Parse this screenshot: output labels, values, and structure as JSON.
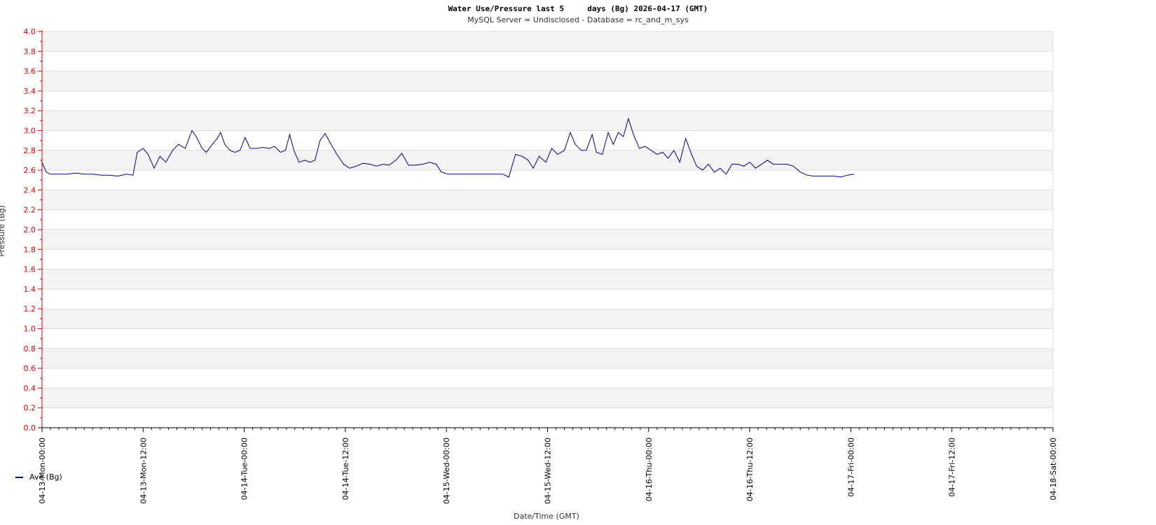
{
  "chart_data": {
    "type": "line",
    "title": "Water Use/Pressure last 5     days (Bg) 2026-04-17 (GMT)",
    "subtitle": "MySQL Server = Undisclosed - Database = rc_and_m_sys",
    "xlabel": "Date/Time (GMT)",
    "ylabel": "Pressure (Bg)",
    "ylim": [
      0,
      4.0
    ],
    "xlim": [
      0,
      120
    ],
    "y_ticks": [
      "0.0",
      "0.2",
      "0.4",
      "0.6",
      "0.8",
      "1.0",
      "1.2",
      "1.4",
      "1.6",
      "1.8",
      "2.0",
      "2.2",
      "2.4",
      "2.6",
      "2.8",
      "3.0",
      "3.2",
      "3.4",
      "3.6",
      "3.8",
      "4.0"
    ],
    "x_tick_labels": [
      "04-13-Mon-00:00",
      "04-13-Mon-12:00",
      "04-14-Tue-00:00",
      "04-14-Tue-12:00",
      "04-15-Wed-00:00",
      "04-15-Wed-12:00",
      "04-16-Thu-00:00",
      "04-16-Thu-12:00",
      "04-17-Fri-00:00",
      "04-17-Fri-12:00",
      "04-18-Sat-00:00"
    ],
    "x_unit": "hours",
    "grid": "horizontal bands",
    "legend_position": "bottom-left",
    "series": [
      {
        "name": "Ave (Bg)",
        "color": "#00008b",
        "points": [
          [
            0,
            2.68
          ],
          [
            0.5,
            2.58
          ],
          [
            1,
            2.56
          ],
          [
            2,
            2.56
          ],
          [
            3,
            2.56
          ],
          [
            4,
            2.57
          ],
          [
            5,
            2.56
          ],
          [
            6,
            2.56
          ],
          [
            7,
            2.55
          ],
          [
            8,
            2.55
          ],
          [
            9,
            2.54
          ],
          [
            10,
            2.56
          ],
          [
            10.8,
            2.55
          ],
          [
            11.3,
            2.78
          ],
          [
            12,
            2.82
          ],
          [
            12.6,
            2.76
          ],
          [
            13.3,
            2.62
          ],
          [
            14,
            2.74
          ],
          [
            14.7,
            2.68
          ],
          [
            15.5,
            2.8
          ],
          [
            16.2,
            2.86
          ],
          [
            17,
            2.82
          ],
          [
            17.8,
            3.0
          ],
          [
            18.3,
            2.94
          ],
          [
            19,
            2.82
          ],
          [
            19.5,
            2.78
          ],
          [
            20.2,
            2.86
          ],
          [
            20.8,
            2.92
          ],
          [
            21.2,
            2.98
          ],
          [
            21.7,
            2.86
          ],
          [
            22.3,
            2.8
          ],
          [
            22.9,
            2.78
          ],
          [
            23.5,
            2.8
          ],
          [
            24.1,
            2.93
          ],
          [
            24.7,
            2.82
          ],
          [
            25.5,
            2.82
          ],
          [
            26.2,
            2.83
          ],
          [
            27,
            2.82
          ],
          [
            27.6,
            2.84
          ],
          [
            28.3,
            2.78
          ],
          [
            28.9,
            2.8
          ],
          [
            29.4,
            2.96
          ],
          [
            29.9,
            2.8
          ],
          [
            30.5,
            2.68
          ],
          [
            31.2,
            2.7
          ],
          [
            31.8,
            2.68
          ],
          [
            32.4,
            2.7
          ],
          [
            33,
            2.9
          ],
          [
            33.6,
            2.97
          ],
          [
            34.3,
            2.86
          ],
          [
            35,
            2.76
          ],
          [
            35.8,
            2.66
          ],
          [
            36.5,
            2.62
          ],
          [
            37.3,
            2.64
          ],
          [
            38.1,
            2.67
          ],
          [
            38.9,
            2.66
          ],
          [
            39.7,
            2.64
          ],
          [
            40.5,
            2.66
          ],
          [
            41.2,
            2.65
          ],
          [
            42,
            2.7
          ],
          [
            42.7,
            2.77
          ],
          [
            43.5,
            2.65
          ],
          [
            44.3,
            2.65
          ],
          [
            45.2,
            2.66
          ],
          [
            46,
            2.68
          ],
          [
            46.8,
            2.66
          ],
          [
            47.4,
            2.58
          ],
          [
            48.2,
            2.56
          ],
          [
            49,
            2.56
          ],
          [
            49.8,
            2.56
          ],
          [
            50.6,
            2.56
          ],
          [
            51.4,
            2.56
          ],
          [
            52.3,
            2.56
          ],
          [
            53.1,
            2.56
          ],
          [
            53.9,
            2.56
          ],
          [
            54.7,
            2.56
          ],
          [
            55.4,
            2.53
          ],
          [
            56.2,
            2.76
          ],
          [
            57,
            2.74
          ],
          [
            57.7,
            2.7
          ],
          [
            58.3,
            2.62
          ],
          [
            59,
            2.74
          ],
          [
            59.8,
            2.68
          ],
          [
            60.5,
            2.82
          ],
          [
            61.2,
            2.76
          ],
          [
            62,
            2.8
          ],
          [
            62.7,
            2.98
          ],
          [
            63.3,
            2.86
          ],
          [
            64,
            2.8
          ],
          [
            64.6,
            2.8
          ],
          [
            65.3,
            2.96
          ],
          [
            65.8,
            2.78
          ],
          [
            66.5,
            2.76
          ],
          [
            67.2,
            2.98
          ],
          [
            67.8,
            2.86
          ],
          [
            68.4,
            2.98
          ],
          [
            69,
            2.94
          ],
          [
            69.6,
            3.12
          ],
          [
            70.2,
            2.96
          ],
          [
            70.9,
            2.82
          ],
          [
            71.6,
            2.84
          ],
          [
            72.3,
            2.8
          ],
          [
            73,
            2.76
          ],
          [
            73.7,
            2.78
          ],
          [
            74.3,
            2.72
          ],
          [
            75,
            2.8
          ],
          [
            75.7,
            2.68
          ],
          [
            76.4,
            2.92
          ],
          [
            77,
            2.78
          ],
          [
            77.7,
            2.64
          ],
          [
            78.4,
            2.6
          ],
          [
            79.1,
            2.66
          ],
          [
            79.8,
            2.58
          ],
          [
            80.5,
            2.62
          ],
          [
            81.2,
            2.56
          ],
          [
            81.9,
            2.66
          ],
          [
            82.6,
            2.66
          ],
          [
            83.3,
            2.64
          ],
          [
            84,
            2.68
          ],
          [
            84.7,
            2.62
          ],
          [
            85.4,
            2.66
          ],
          [
            86.1,
            2.7
          ],
          [
            86.8,
            2.66
          ],
          [
            87.6,
            2.66
          ],
          [
            88.4,
            2.66
          ],
          [
            89.2,
            2.64
          ],
          [
            90,
            2.58
          ],
          [
            90.8,
            2.55
          ],
          [
            91.6,
            2.54
          ],
          [
            92.4,
            2.54
          ],
          [
            93.2,
            2.54
          ],
          [
            94,
            2.54
          ],
          [
            94.8,
            2.53
          ],
          [
            95.6,
            2.55
          ],
          [
            96.4,
            2.56
          ]
        ]
      }
    ]
  }
}
